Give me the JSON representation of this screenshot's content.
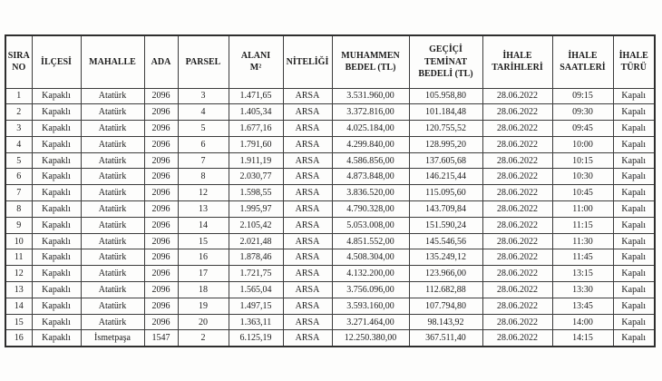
{
  "document": {
    "background_color": "#fdfdfc",
    "text_color": "#1c1c1c",
    "border_color": "#3c3c3c"
  },
  "table": {
    "columns": [
      {
        "id": "sira_no",
        "label": "SIRA\nNO"
      },
      {
        "id": "ilcesi",
        "label": "İLÇESİ"
      },
      {
        "id": "mahalle",
        "label": "MAHALLE"
      },
      {
        "id": "ada",
        "label": "ADA"
      },
      {
        "id": "parsel",
        "label": "PARSEL"
      },
      {
        "id": "alani_m2",
        "label": "ALANI\nM²"
      },
      {
        "id": "niteligi",
        "label": "NİTELİĞİ"
      },
      {
        "id": "muhammen_bedel_tl",
        "label": "MUHAMMEN\nBEDEL (TL)"
      },
      {
        "id": "gecici_teminat_bedeli_tl",
        "label": "GEÇİÇİ\nTEMİNAT\nBEDELİ (TL)"
      },
      {
        "id": "ihale_tarihleri",
        "label": "İHALE\nTARİHLERİ"
      },
      {
        "id": "ihale_saatleri",
        "label": "İHALE\nSAATLERİ"
      },
      {
        "id": "ihale_turu",
        "label": "İHALE\nTÜRÜ"
      }
    ],
    "rows": [
      [
        "1",
        "Kapaklı",
        "Atatürk",
        "2096",
        "3",
        "1.471,65",
        "ARSA",
        "3.531.960,00",
        "105.958,80",
        "28.06.2022",
        "09:15",
        "Kapalı"
      ],
      [
        "2",
        "Kapaklı",
        "Atatürk",
        "2096",
        "4",
        "1.405,34",
        "ARSA",
        "3.372.816,00",
        "101.184,48",
        "28.06.2022",
        "09:30",
        "Kapalı"
      ],
      [
        "3",
        "Kapaklı",
        "Atatürk",
        "2096",
        "5",
        "1.677,16",
        "ARSA",
        "4.025.184,00",
        "120.755,52",
        "28.06.2022",
        "09:45",
        "Kapalı"
      ],
      [
        "4",
        "Kapaklı",
        "Atatürk",
        "2096",
        "6",
        "1.791,60",
        "ARSA",
        "4.299.840,00",
        "128.995,20",
        "28.06.2022",
        "10:00",
        "Kapalı"
      ],
      [
        "5",
        "Kapaklı",
        "Atatürk",
        "2096",
        "7",
        "1.911,19",
        "ARSA",
        "4.586.856,00",
        "137.605,68",
        "28.06.2022",
        "10:15",
        "Kapalı"
      ],
      [
        "6",
        "Kapaklı",
        "Atatürk",
        "2096",
        "8",
        "2.030,77",
        "ARSA",
        "4.873.848,00",
        "146.215,44",
        "28.06.2022",
        "10:30",
        "Kapalı"
      ],
      [
        "7",
        "Kapaklı",
        "Atatürk",
        "2096",
        "12",
        "1.598,55",
        "ARSA",
        "3.836.520,00",
        "115.095,60",
        "28.06.2022",
        "10:45",
        "Kapalı"
      ],
      [
        "8",
        "Kapaklı",
        "Atatürk",
        "2096",
        "13",
        "1.995,97",
        "ARSA",
        "4.790.328,00",
        "143.709,84",
        "28.06.2022",
        "11:00",
        "Kapalı"
      ],
      [
        "9",
        "Kapaklı",
        "Atatürk",
        "2096",
        "14",
        "2.105,42",
        "ARSA",
        "5.053.008,00",
        "151.590,24",
        "28.06.2022",
        "11:15",
        "Kapalı"
      ],
      [
        "10",
        "Kapaklı",
        "Atatürk",
        "2096",
        "15",
        "2.021,48",
        "ARSA",
        "4.851.552,00",
        "145.546,56",
        "28.06.2022",
        "11:30",
        "Kapalı"
      ],
      [
        "11",
        "Kapaklı",
        "Atatürk",
        "2096",
        "16",
        "1.878,46",
        "ARSA",
        "4.508.304,00",
        "135.249,12",
        "28.06.2022",
        "11:45",
        "Kapalı"
      ],
      [
        "12",
        "Kapaklı",
        "Atatürk",
        "2096",
        "17",
        "1.721,75",
        "ARSA",
        "4.132.200,00",
        "123.966,00",
        "28.06.2022",
        "13:15",
        "Kapalı"
      ],
      [
        "13",
        "Kapaklı",
        "Atatürk",
        "2096",
        "18",
        "1.565,04",
        "ARSA",
        "3.756.096,00",
        "112.682,88",
        "28.06.2022",
        "13:30",
        "Kapalı"
      ],
      [
        "14",
        "Kapaklı",
        "Atatürk",
        "2096",
        "19",
        "1.497,15",
        "ARSA",
        "3.593.160,00",
        "107.794,80",
        "28.06.2022",
        "13:45",
        "Kapalı"
      ],
      [
        "15",
        "Kapaklı",
        "Atatürk",
        "2096",
        "20",
        "1.363,11",
        "ARSA",
        "3.271.464,00",
        "98.143,92",
        "28.06.2022",
        "14:00",
        "Kapalı"
      ],
      [
        "16",
        "Kapaklı",
        "İsmetpaşa",
        "1547",
        "2",
        "6.125,19",
        "ARSA",
        "12.250.380,00",
        "367.511,40",
        "28.06.2022",
        "14:15",
        "Kapalı"
      ]
    ]
  }
}
